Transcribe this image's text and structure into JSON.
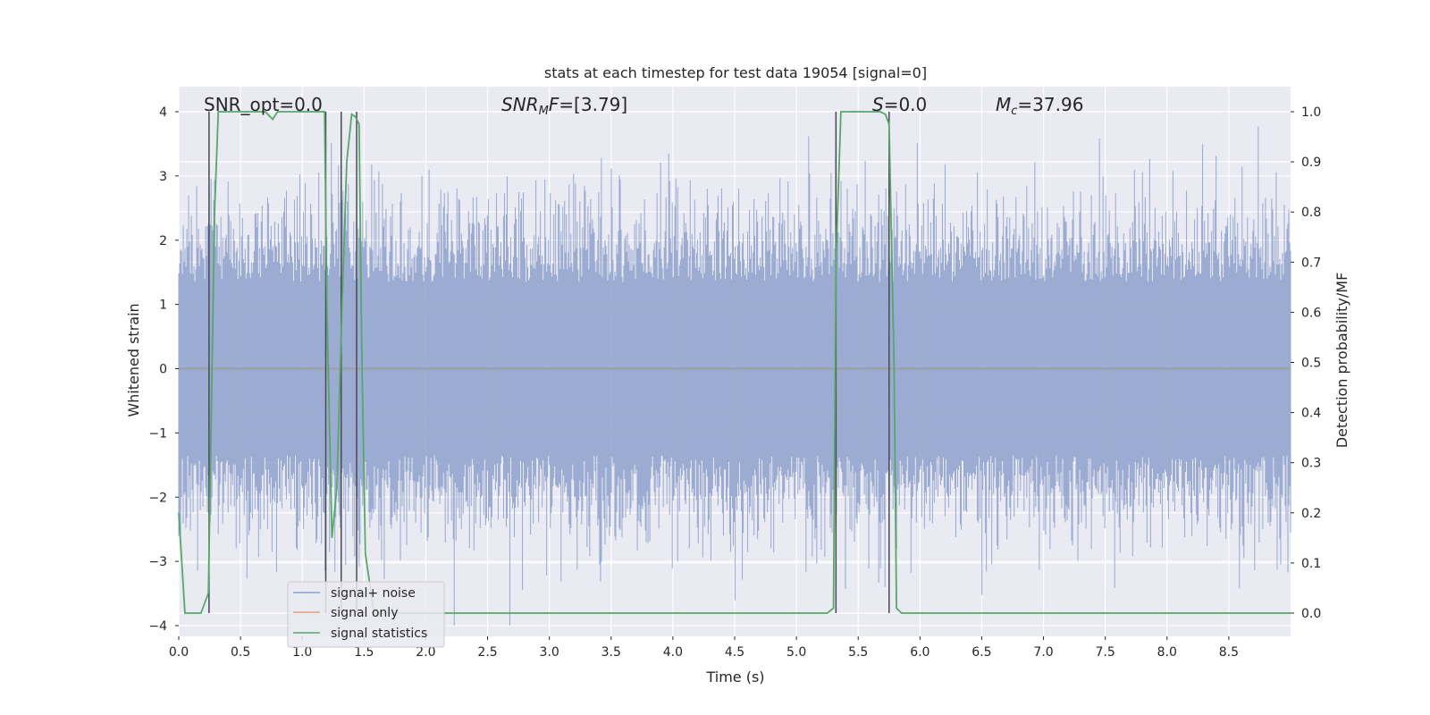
{
  "chart_data": {
    "type": "line",
    "title": "stats at each timestep for test data 19054 [signal=0]",
    "xlabel": "Time (s)",
    "ylabel": "Whitened strain",
    "y2label": "Detection probability/MF",
    "xlim": [
      0.0,
      9.0
    ],
    "ylim": [
      -4.4,
      4.4
    ],
    "y2lim": [
      -0.045,
      1.045
    ],
    "xticks": [
      "0.0",
      "0.5",
      "1.0",
      "1.5",
      "2.0",
      "2.5",
      "3.0",
      "3.5",
      "4.0",
      "4.5",
      "5.0",
      "5.5",
      "6.0",
      "6.5",
      "7.0",
      "7.5",
      "8.0",
      "8.5"
    ],
    "yticks": [
      "4",
      "3",
      "2",
      "1",
      "0",
      "−1",
      "−2",
      "−3",
      "−4"
    ],
    "y2ticks": [
      "1.0",
      "0.9",
      "0.8",
      "0.7",
      "0.6",
      "0.5",
      "0.4",
      "0.3",
      "0.2",
      "0.1",
      "0.0"
    ],
    "grid": true,
    "legend_position": "lower-left",
    "annotations": {
      "snr_opt": "SNR_opt=0.0",
      "snr_mf": "=[3.79]",
      "s_stat": "=0.0",
      "mc": "=37.96"
    },
    "series": [
      {
        "name": "signal+ noise",
        "color": "#8da0cb",
        "kind": "noise",
        "x_range": [
          0.0,
          9.0
        ],
        "y_range": [
          -4.0,
          4.0
        ],
        "description_level": "dense whitened noise, roughly ±2 with spikes to ±4"
      },
      {
        "name": "signal only",
        "color": "#e8a07c",
        "kind": "flat",
        "value": 0.0
      },
      {
        "name": "signal statistics",
        "color": "#55a868",
        "axis": "right",
        "x": [
          0.0,
          0.05,
          0.18,
          0.24,
          0.29,
          0.32,
          0.7,
          0.76,
          0.8,
          0.86,
          1.18,
          1.2,
          1.24,
          1.28,
          1.32,
          1.36,
          1.4,
          1.43,
          1.46,
          1.48,
          1.51,
          1.58,
          1.64,
          5.25,
          5.3,
          5.32,
          5.36,
          5.68,
          5.72,
          5.75,
          5.79,
          5.81,
          5.85,
          5.9,
          9.0
        ],
        "y": [
          0.2,
          0.0,
          0.0,
          0.04,
          0.8,
          1.0,
          1.0,
          0.985,
          1.0,
          1.0,
          1.0,
          0.6,
          0.15,
          0.25,
          0.6,
          0.9,
          0.995,
          0.99,
          0.975,
          0.55,
          0.12,
          0.0,
          0.0,
          0.0,
          0.01,
          0.7,
          1.0,
          1.0,
          0.995,
          0.975,
          0.5,
          0.01,
          0.0,
          0.0,
          0.0
        ]
      }
    ],
    "vertical_lines": [
      0.245,
      1.19,
      1.315,
      1.44,
      5.32,
      5.75
    ]
  },
  "legend": {
    "items": [
      {
        "label": "signal+ noise",
        "color": "#8da0cb"
      },
      {
        "label": "signal only",
        "color": "#e8a07c"
      },
      {
        "label": "signal statistics",
        "color": "#55a868"
      }
    ]
  }
}
